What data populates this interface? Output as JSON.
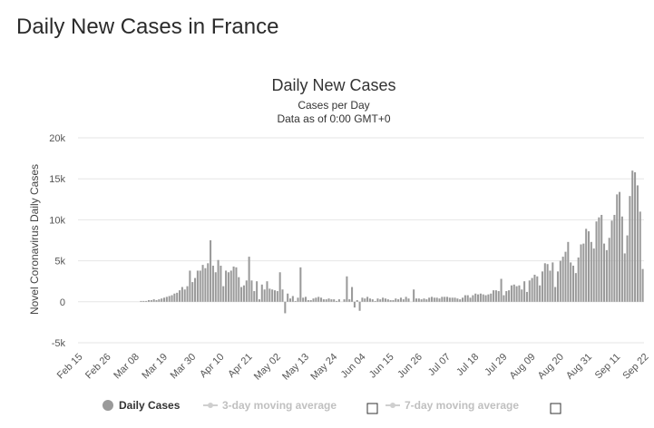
{
  "page": {
    "title": "Daily New Cases in France"
  },
  "chart_data": {
    "type": "bar",
    "title": "Daily New Cases",
    "subtitle_1": "Cases per Day",
    "subtitle_2": "Data as of 0:00 GMT+0",
    "ylabel": "Novel Coronavirus Daily Cases",
    "xlabel": "",
    "ylim": [
      -5000,
      20000
    ],
    "yticks": [
      -5000,
      0,
      5000,
      10000,
      15000,
      20000
    ],
    "ytick_labels": [
      "-5k",
      "0",
      "5k",
      "10k",
      "15k",
      "20k"
    ],
    "x_tick_labels": [
      "Feb 15",
      "Feb 26",
      "Mar 08",
      "Mar 19",
      "Mar 30",
      "Apr 10",
      "Apr 21",
      "May 02",
      "May 13",
      "May 24",
      "Jun 04",
      "Jun 15",
      "Jun 26",
      "Jul 07",
      "Jul 18",
      "Jul 29",
      "Aug 09",
      "Aug 20",
      "Aug 31",
      "Sep 11",
      "Sep 22"
    ],
    "x_tick_step_days": 11,
    "grid": true,
    "legend_position": "bottom",
    "series": [
      {
        "name": "Daily Cases",
        "color": "#9a9a9a",
        "start_date": "Feb 15",
        "values": [
          0,
          0,
          0,
          0,
          0,
          0,
          0,
          0,
          0,
          0,
          0,
          0,
          0,
          0,
          0,
          0,
          0,
          0,
          0,
          0,
          0,
          0,
          0,
          0,
          100,
          100,
          100,
          200,
          200,
          300,
          200,
          300,
          400,
          500,
          600,
          700,
          800,
          1000,
          1100,
          1400,
          1800,
          1500,
          1900,
          3800,
          2400,
          2900,
          3800,
          3800,
          4500,
          4100,
          4700,
          7500,
          4400,
          3600,
          5100,
          4400,
          1900,
          3800,
          3600,
          3800,
          4300,
          4200,
          3000,
          1800,
          2000,
          2600,
          5500,
          2600,
          1300,
          2500,
          300,
          2100,
          1500,
          2500,
          1600,
          1500,
          1400,
          1300,
          3600,
          1500,
          -1400,
          1000,
          400,
          700,
          100,
          500,
          4200,
          500,
          600,
          200,
          200,
          400,
          500,
          600,
          500,
          300,
          300,
          400,
          300,
          300,
          100,
          300,
          0,
          300,
          3100,
          300,
          1800,
          -700,
          200,
          -1100,
          500,
          400,
          600,
          400,
          300,
          100,
          400,
          300,
          500,
          400,
          300,
          200,
          200,
          400,
          300,
          500,
          300,
          600,
          400,
          0,
          1500,
          400,
          400,
          300,
          400,
          300,
          500,
          600,
          500,
          500,
          400,
          600,
          600,
          600,
          500,
          500,
          500,
          400,
          300,
          500,
          800,
          800,
          500,
          800,
          1000,
          900,
          1000,
          900,
          800,
          900,
          1000,
          1400,
          1400,
          1300,
          2800,
          800,
          1300,
          1400,
          2000,
          2100,
          1900,
          2000,
          1500,
          2500,
          1200,
          2600,
          2900,
          3300,
          3100,
          2000,
          3700,
          4700,
          4600,
          3800,
          4800,
          1800,
          3700,
          5000,
          5500,
          6100,
          7300,
          4800,
          4400,
          3500,
          5400,
          7000,
          7100,
          8900,
          8600,
          7300,
          6500,
          9800,
          10300,
          10600,
          7100,
          6300,
          7800,
          9900,
          10600,
          13100,
          13400,
          10400,
          5900,
          8100,
          12900,
          16000,
          15800,
          14200,
          11000,
          4000
        ]
      },
      {
        "name": "3-day moving average",
        "color": "#cfcfcf",
        "visible": false
      },
      {
        "name": "7-day moving average",
        "color": "#cfcfcf",
        "visible": false
      }
    ]
  }
}
